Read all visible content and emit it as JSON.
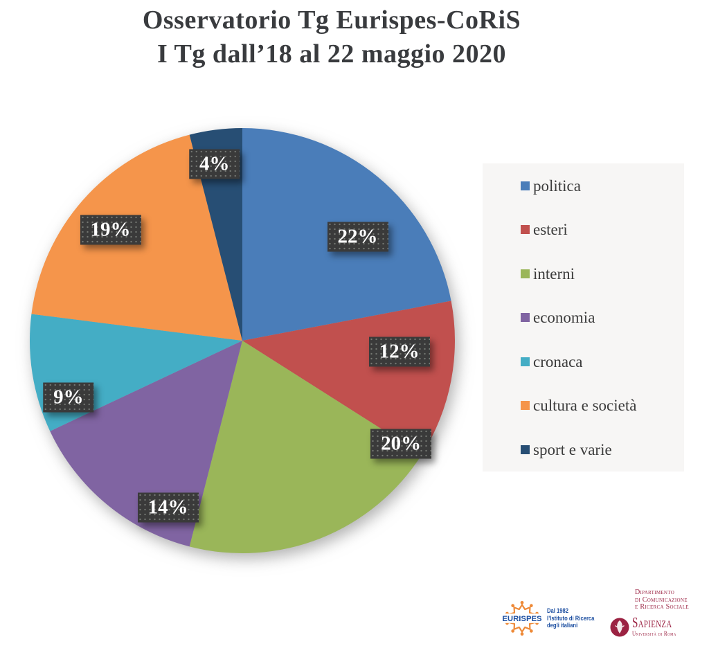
{
  "title": {
    "line1": "Osservatorio Tg Eurispes-CoRiS",
    "line2": "I Tg dall’18 al 22 maggio 2020"
  },
  "chart_data": {
    "type": "pie",
    "title": "Osservatorio Tg Eurispes-CoRiS",
    "subtitle": "I Tg dall’18 al 22 maggio 2020",
    "categories": [
      "politica",
      "esteri",
      "interni",
      "economia",
      "cronaca",
      "cultura e società",
      "sport e varie"
    ],
    "values": [
      22,
      12,
      20,
      14,
      9,
      19,
      4
    ],
    "unit": "%",
    "slice_labels": [
      "22%",
      "12%",
      "20%",
      "14%",
      "9%",
      "19%",
      "4%"
    ],
    "colors": [
      "#4a7db9",
      "#c1504e",
      "#9ab659",
      "#8064a2",
      "#44adc5",
      "#f5954b",
      "#274e74"
    ],
    "start_angle_deg": 0,
    "direction": "clockwise",
    "legend_position": "right",
    "label_style": {
      "bg": "#3a3a3a",
      "text": "#ffffff"
    },
    "label_layout": [
      {
        "angle": 48,
        "r": 0.73
      },
      {
        "angle": 94,
        "r": 0.74
      },
      {
        "angle": 123,
        "r": 0.89
      },
      {
        "angle": 204,
        "r": 0.86
      },
      {
        "angle": 252,
        "r": 0.86
      },
      {
        "angle": 310,
        "r": 0.81
      },
      {
        "angle": 351,
        "r": 0.84
      }
    ]
  },
  "legend": {
    "items": [
      "politica",
      "esteri",
      "interni",
      "economia",
      "cronaca",
      "cultura e società",
      "sport e varie"
    ]
  },
  "footer": {
    "eurispes": {
      "wordmark": "EURISPES",
      "tagline_lines": [
        "Dal 1982",
        "l’Istituto di Ricerca",
        "degli italiani"
      ],
      "brand_blue": "#1d4fa1",
      "brand_orange": "#ee8a38"
    },
    "sapienza": {
      "department_lines": [
        "Dipartimento",
        "di Comunicazione",
        "e Ricerca Sociale"
      ],
      "wordmark": "Sapienza",
      "subtitle": "Università di Roma",
      "brand_maroon": "#9b2242"
    }
  }
}
